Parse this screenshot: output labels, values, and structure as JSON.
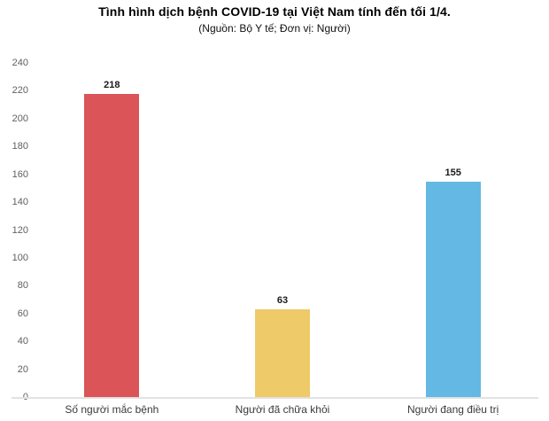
{
  "page": {
    "title": "Tình hình dịch bệnh COVID-19 tại Việt Nam tính đến tối 1/4.",
    "subtitle": "(Nguồn: Bộ Y tế; Đơn vị: Người)"
  },
  "chart_data": {
    "type": "bar",
    "title": "Tình hình dịch bệnh COVID-19 tại Việt Nam tính đến tối 1/4.",
    "subtitle": "(Nguồn: Bộ Y tế; Đơn vị: Người)",
    "categories": [
      "Số người mắc bệnh",
      "Người đã chữa khỏi",
      "Người đang điều trị"
    ],
    "values": [
      218,
      63,
      155
    ],
    "value_labels": [
      "218",
      "63",
      "155"
    ],
    "bar_colors": [
      "#db5457",
      "#eeca68",
      "#64b8e4"
    ],
    "xlabel": "",
    "ylabel": "",
    "ylim": [
      0,
      240
    ],
    "yticks": [
      0,
      20,
      40,
      60,
      80,
      100,
      120,
      140,
      160,
      180,
      200,
      220,
      240
    ],
    "grid": false,
    "legend": "none",
    "colors": {
      "axis_line": "#e2e2e2",
      "tick_label": "#5f5f5f",
      "category_label": "#3b3b3b",
      "value_label": "#1a1a1a",
      "background": "#ffffff"
    }
  }
}
